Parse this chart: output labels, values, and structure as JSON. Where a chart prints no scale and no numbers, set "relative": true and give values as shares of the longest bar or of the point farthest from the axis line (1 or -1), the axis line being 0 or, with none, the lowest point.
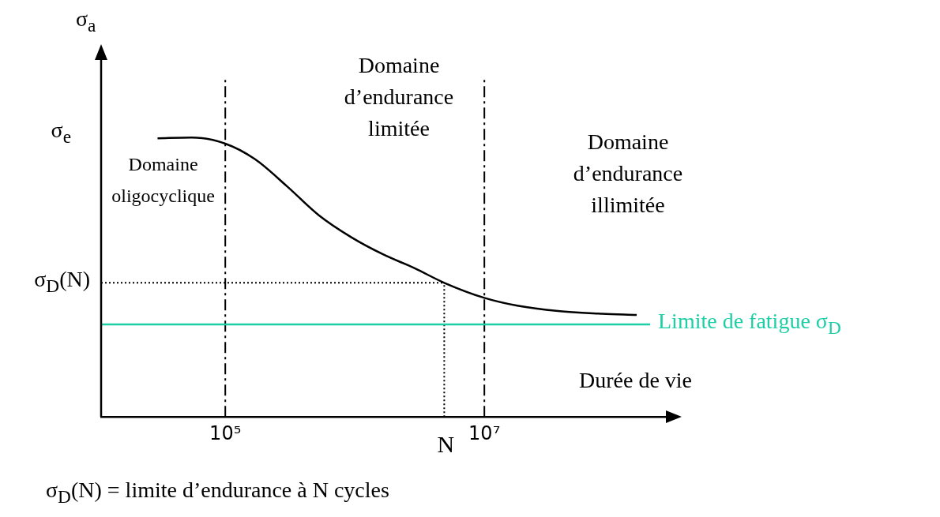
{
  "chart_data": {
    "type": "line",
    "relative": true,
    "xlabel": "Durée de vie",
    "ylabel": "σ$_{a}$",
    "log": "x",
    "grid": false,
    "legend": false,
    "marker": "none",
    "line_style": "solid",
    "xlim": [
      11000,
      290000000
    ],
    "xticks": [
      {
        "value": 100000,
        "label": "10⁵"
      },
      {
        "value": 10000000,
        "label": "10⁷"
      }
    ],
    "x": [
      30000,
      55000,
      100000,
      170000,
      300000,
      530000,
      940000,
      1650000,
      2900000,
      4900000,
      10000000,
      18000000,
      37000000,
      76000000,
      150000000
    ],
    "series": [
      {
        "color": "#000000",
        "values": [
          0.997,
          1.0,
          0.978,
          0.922,
          0.825,
          0.721,
          0.643,
          0.582,
          0.532,
          0.48,
          0.426,
          0.398,
          0.379,
          0.37,
          0.365
        ]
      }
    ],
    "ref_lines": [
      {
        "axis": "x",
        "value": 100000,
        "line_style": "dashed",
        "color": "#000000"
      },
      {
        "axis": "x",
        "value": 10000000,
        "line_style": "dashed",
        "color": "#000000"
      },
      {
        "axis": "x",
        "value": 4900000,
        "label": "N",
        "line_style": "dotted",
        "color": "#000000"
      },
      {
        "axis": "y",
        "value": 0.48,
        "label": "σ$_{D}$(N)",
        "line_style": "dotted",
        "color": "#000000"
      },
      {
        "axis": "y",
        "value": 0.331,
        "label": "Limite de fatigue σ$_{D}$",
        "line_style": "solid",
        "color": "#1ecfa6"
      }
    ],
    "annotations": [
      "σ$_{e}$",
      "Domaine\noligocyclique",
      "Domaine\nd’endurance\nlimitée",
      "Domaine\nd’endurance\nillimitée",
      "σ$_{D}$(N) = limite d’endurance à N cycles"
    ]
  }
}
